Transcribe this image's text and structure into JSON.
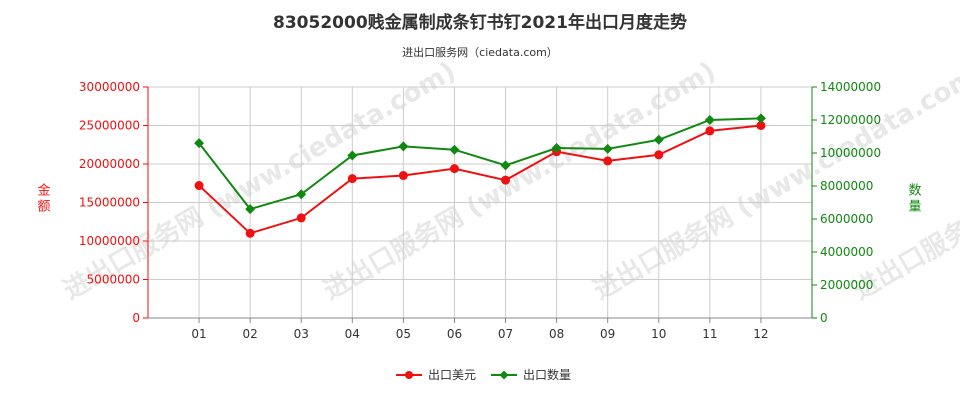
{
  "title": "83052000贱金属制成条钉书钉2021年出口月度走势",
  "subtitle": "进出口服务网（ciedata.com）",
  "watermark": "进出口服务网 (www.ciedata.com)",
  "chart_data": {
    "type": "line",
    "categories": [
      "01",
      "02",
      "03",
      "04",
      "05",
      "06",
      "07",
      "08",
      "09",
      "10",
      "11",
      "12"
    ],
    "series": [
      {
        "name": "出口美元",
        "axis": "left",
        "color": "#ee1111",
        "values": [
          17200000,
          11000000,
          13000000,
          18100000,
          18500000,
          19400000,
          17900000,
          21600000,
          20400000,
          21200000,
          24300000,
          25000000
        ]
      },
      {
        "name": "出口数量",
        "axis": "right",
        "color": "#118811",
        "values": [
          10600000,
          6600000,
          7500000,
          9850000,
          10400000,
          10200000,
          9250000,
          10300000,
          10250000,
          10800000,
          12000000,
          12100000
        ]
      }
    ],
    "y_left": {
      "label": "金额",
      "color": "#ee1111",
      "min": 0,
      "max": 30000000,
      "ticks": [
        "0",
        "5000000",
        "10000000",
        "15000000",
        "20000000",
        "25000000",
        "30000000"
      ]
    },
    "y_right": {
      "label": "数量",
      "color": "#118811",
      "min": 0,
      "max": 14000000,
      "ticks": [
        "0",
        "2000000",
        "4000000",
        "6000000",
        "8000000",
        "10000000",
        "12000000",
        "14000000"
      ]
    },
    "grid": true,
    "legend": "bottom-center"
  }
}
